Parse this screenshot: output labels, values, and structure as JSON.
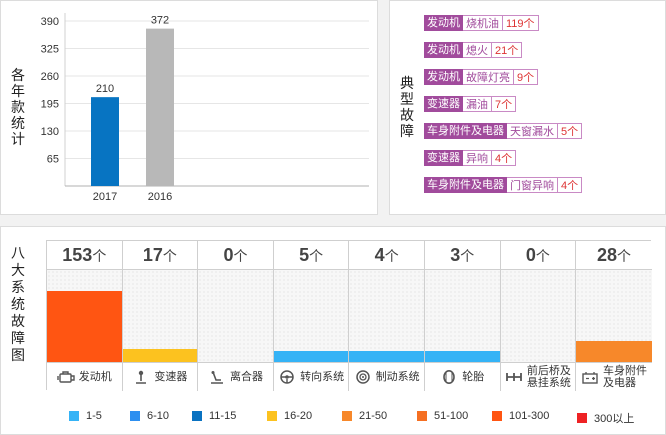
{
  "year_panel": {
    "ylabel": "各年款统计"
  },
  "fault_panel": {
    "title": "典型故障",
    "items": [
      {
        "system": "发动机",
        "fault": "烧机油",
        "count": "119个"
      },
      {
        "system": "发动机",
        "fault": "熄火",
        "count": "21个"
      },
      {
        "system": "发动机",
        "fault": "故障灯亮",
        "count": "9个"
      },
      {
        "system": "变速器",
        "fault": "漏油",
        "count": "7个"
      },
      {
        "system": "车身附件及电器",
        "fault": "天窗漏水",
        "count": "5个"
      },
      {
        "system": "变速器",
        "fault": "异响",
        "count": "4个"
      },
      {
        "system": "车身附件及电器",
        "fault": "门窗异响",
        "count": "4个"
      }
    ]
  },
  "system_panel": {
    "title": "八大系统故障图",
    "unit": "个",
    "systems": [
      {
        "name": "发动机",
        "count": 153,
        "color": "#ff5512",
        "icon": "engine-icon"
      },
      {
        "name": "变速器",
        "count": 17,
        "color": "#fcc21f",
        "icon": "gear-shift-icon"
      },
      {
        "name": "离合器",
        "count": 0,
        "color": "",
        "icon": "clutch-pedal-icon"
      },
      {
        "name": "转向系统",
        "count": 5,
        "color": "#35b3f6",
        "icon": "steering-wheel-icon"
      },
      {
        "name": "制动系统",
        "count": 4,
        "color": "#35b3f6",
        "icon": "brake-disc-icon"
      },
      {
        "name": "轮胎",
        "count": 3,
        "color": "#35b3f6",
        "icon": "tire-icon"
      },
      {
        "name": "前后桥及\n悬挂系统",
        "count": 0,
        "color": "",
        "icon": "axle-icon"
      },
      {
        "name": "车身附件\n及电器",
        "count": 28,
        "color": "#f7882a",
        "icon": "battery-icon"
      }
    ],
    "legend": [
      {
        "label": "1-5",
        "color": "#35b3f6"
      },
      {
        "label": "6-10",
        "color": "#2d8ff0"
      },
      {
        "label": "11-15",
        "color": "#0972c1"
      },
      {
        "label": "16-20",
        "color": "#fcc21f"
      },
      {
        "label": "21-50",
        "color": "#f7882a"
      },
      {
        "label": "51-100",
        "color": "#f56f22"
      },
      {
        "label": "101-300",
        "color": "#ff5512"
      },
      {
        "label": "300以上",
        "color": "#ee2224"
      }
    ]
  },
  "chart_data": [
    {
      "type": "bar",
      "categories": [
        "2017",
        "2016"
      ],
      "values": [
        210,
        372
      ],
      "colors": [
        "#0774c2",
        "#b8b8b8"
      ],
      "ylabel": "各年款统计",
      "yticks": [
        65,
        130,
        195,
        260,
        325,
        390
      ],
      "ylim": [
        0,
        390
      ],
      "grid": true
    },
    {
      "type": "bar",
      "title": "八大系统故障图",
      "categories": [
        "发动机",
        "变速器",
        "离合器",
        "转向系统",
        "制动系统",
        "轮胎",
        "前后桥及悬挂系统",
        "车身附件及电器"
      ],
      "values": [
        153,
        17,
        0,
        5,
        4,
        3,
        0,
        28
      ]
    }
  ]
}
